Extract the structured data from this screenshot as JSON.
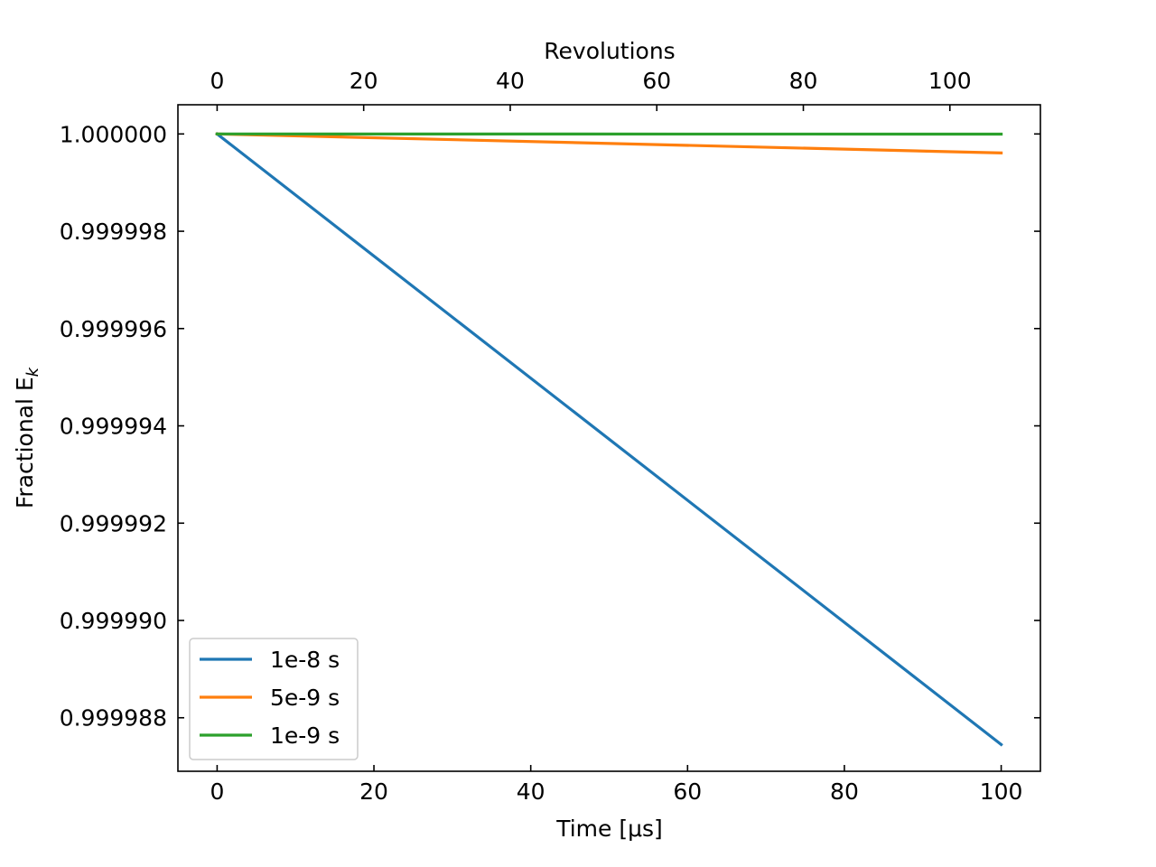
{
  "chart_data": {
    "type": "line",
    "xlabel": "Time [μs]",
    "ylabel": "Fractional E",
    "ylabel_subscript": "k",
    "top_xlabel": "Revolutions",
    "xlim": [
      -5,
      105
    ],
    "ylim": [
      0.9999869,
      1.0000006
    ],
    "x_ticks": [
      0,
      20,
      40,
      60,
      80,
      100
    ],
    "x_tick_labels": [
      "0",
      "20",
      "40",
      "60",
      "80",
      "100"
    ],
    "y_ticks": [
      0.999988,
      0.99999,
      0.999992,
      0.999994,
      0.999996,
      0.999998,
      1.0
    ],
    "y_tick_labels": [
      "0.999988",
      "0.999990",
      "0.999992",
      "0.999994",
      "0.999996",
      "0.999998",
      "1.000000"
    ],
    "top_x_ticks": [
      0,
      20,
      40,
      60,
      80,
      100
    ],
    "top_x_tick_labels": [
      "0",
      "20",
      "40",
      "60",
      "80",
      "100"
    ],
    "top_x_per_time": 1.07,
    "grid": false,
    "legend_position": "lower-left",
    "series": [
      {
        "name": "1e-8 s",
        "color": "#1f77b4",
        "x": [
          0,
          100
        ],
        "y": [
          1.0,
          0.99998745
        ]
      },
      {
        "name": "5e-9 s",
        "color": "#ff7f0e",
        "x": [
          0,
          100
        ],
        "y": [
          1.0,
          0.99999961
        ]
      },
      {
        "name": "1e-9 s",
        "color": "#2ca02c",
        "x": [
          0,
          100
        ],
        "y": [
          1.0,
          0.999999997
        ]
      }
    ]
  }
}
